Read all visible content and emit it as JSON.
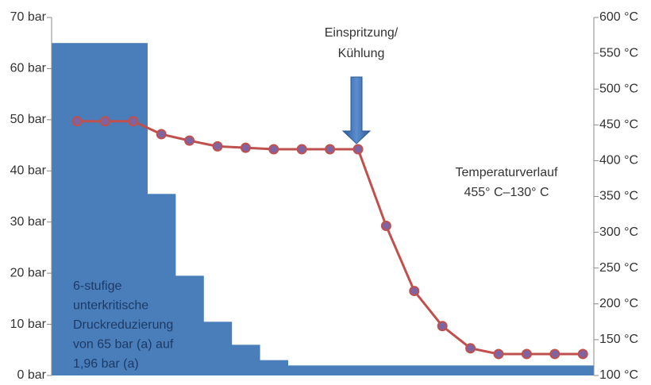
{
  "chart_data": {
    "type": "bar-line",
    "ylim": [
      0,
      70
    ],
    "yticks": [
      {
        "value": 0,
        "label": "0 bar"
      },
      {
        "value": 10,
        "label": "10 bar"
      },
      {
        "value": 20,
        "label": "20 bar"
      },
      {
        "value": 30,
        "label": "30 bar"
      },
      {
        "value": 40,
        "label": "40 bar"
      },
      {
        "value": 50,
        "label": "50 bar"
      },
      {
        "value": 60,
        "label": "60 bar"
      },
      {
        "value": 70,
        "label": "70 bar"
      }
    ],
    "y2lim": [
      100,
      600
    ],
    "y2ticks": [
      {
        "value": 100,
        "label": "100 °C"
      },
      {
        "value": 150,
        "label": "150 °C"
      },
      {
        "value": 200,
        "label": "200 °C"
      },
      {
        "value": 250,
        "label": "250 °C"
      },
      {
        "value": 300,
        "label": "300 °C"
      },
      {
        "value": 350,
        "label": "350 °C"
      },
      {
        "value": 400,
        "label": "400 °C"
      },
      {
        "value": 450,
        "label": "450 °C"
      },
      {
        "value": 500,
        "label": "500 °C"
      },
      {
        "value": 550,
        "label": "550 °C"
      },
      {
        "value": 600,
        "label": "600 °C"
      }
    ],
    "series": [
      {
        "type": "bar",
        "axis": "y",
        "color": "#4a7ebb",
        "values": [
          65,
          65,
          65,
          35.5,
          19.5,
          10.5,
          6,
          3,
          1.96,
          1.96,
          1.96,
          1.96,
          1.96,
          1.96,
          1.96,
          1.96,
          1.96,
          1.96,
          1.96
        ]
      },
      {
        "type": "line",
        "axis": "y2",
        "color": "#c0504d",
        "marker_color": "#8064a2",
        "values": [
          455,
          455,
          455,
          437,
          428,
          420,
          418,
          416,
          416,
          416,
          416,
          309,
          218,
          169,
          138,
          130,
          130,
          130,
          130
        ]
      }
    ],
    "annotations": [
      {
        "lines": [
          "Einspritzung/",
          "Kühlung"
        ]
      },
      {
        "lines": [
          "Temperaturverlauf",
          "455° C–130° C"
        ]
      },
      {
        "lines": [
          "6-stufige",
          "unterkritische",
          "Druckreduzierung",
          "von 65 bar (a) auf",
          "1,96 bar (a)"
        ]
      }
    ]
  }
}
